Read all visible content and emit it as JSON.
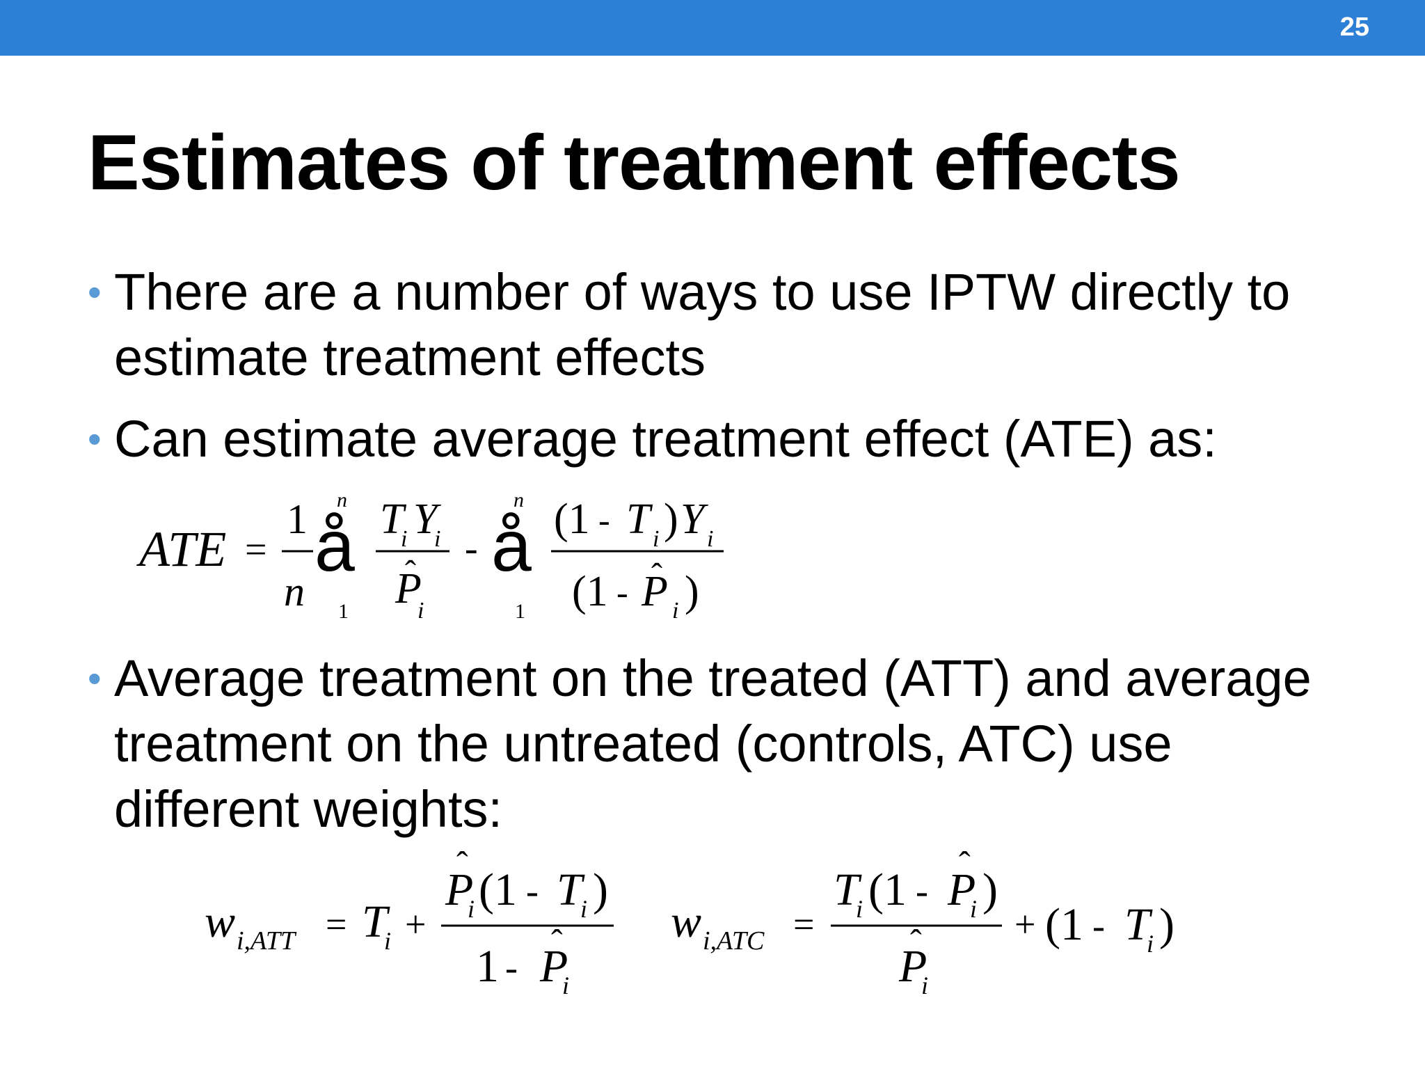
{
  "slide": {
    "number": "25",
    "title": "Estimates of treatment effects",
    "accent_color": "#2e7fd6",
    "bullet_color": "#5b9bd5"
  },
  "bullets": [
    "There are a number of ways to use IPTW directly to estimate treatment effects",
    "Can estimate average treatment effect (ATE) as:",
    "Average treatment on the treated (ATT) and average treatment on the untreated (controls, ATC) use different weights:"
  ],
  "formula_ate": {
    "lhs": "ATE",
    "eq": "=",
    "one": "1",
    "n": "n",
    "sum_glyph": "å",
    "sum_top": "n",
    "sum_bottom": "1",
    "frac1_T": "T",
    "frac1_Y": "Y",
    "frac1_P": "P",
    "hat": "ˆ",
    "i": "i",
    "minus": "-",
    "frac2_num_open": "(1",
    "frac2_num_T": "T",
    "frac2_num_close": ")",
    "frac2_num_Y": "Y",
    "frac2_den_open": "(1",
    "frac2_den_P": "P",
    "frac2_den_close": ")"
  },
  "formula_weights": {
    "w": "w",
    "att_sub": "i,ATT",
    "atc_sub": "i,ATC",
    "eq": "=",
    "plus": "+",
    "minus": "-",
    "T": "T",
    "P": "P",
    "i": "i",
    "hat": "ˆ",
    "one": "1",
    "open1": "(1",
    "close": ")"
  }
}
